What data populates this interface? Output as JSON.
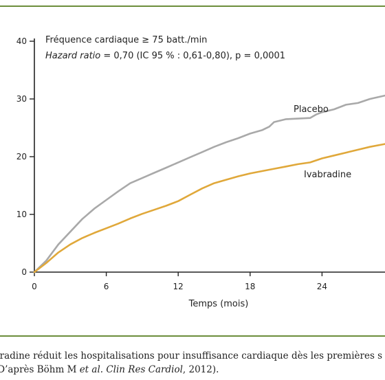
{
  "chart_data": {
    "type": "line",
    "annotation_line1": "Fréquence cardiaque ≥ 75 batt./min",
    "annotation_line2_italic": "Hazard ratio",
    "annotation_line2_rest": " = 0,70 (IC 95 % : 0,61-0,80), p = 0,0001",
    "xlabel": "Temps (mois)",
    "ylabel": "",
    "xlim": [
      0,
      30
    ],
    "ylim": [
      0,
      40
    ],
    "x_ticks": [
      "0",
      "6",
      "12",
      "18",
      "24"
    ],
    "y_ticks": [
      "0",
      "10",
      "20",
      "30",
      "40"
    ],
    "grid": false,
    "series": [
      {
        "name": "Placebo",
        "color": "#a9a9a9",
        "x": [
          0,
          1,
          2,
          3,
          4,
          5,
          6,
          7,
          8,
          9,
          10,
          11,
          12,
          13,
          14,
          15,
          16,
          17,
          18,
          19,
          19.6,
          20,
          21,
          22,
          23,
          23.5,
          24,
          25,
          26,
          27,
          28,
          29.5
        ],
        "y": [
          0,
          2,
          4.8,
          7.0,
          9.2,
          11.0,
          12.5,
          14.0,
          15.4,
          16.3,
          17.2,
          18.1,
          19.0,
          19.9,
          20.8,
          21.7,
          22.5,
          23.2,
          24.0,
          24.6,
          25.2,
          26.0,
          26.5,
          26.6,
          26.7,
          27.3,
          27.7,
          28.2,
          29.0,
          29.3,
          30.0,
          30.7
        ]
      },
      {
        "name": "Ivabradine",
        "color": "#e0a83a",
        "x": [
          0,
          1,
          2,
          3,
          4,
          5,
          6,
          7,
          8,
          9,
          10,
          11,
          12,
          13,
          14,
          15,
          16,
          17,
          18,
          19,
          20,
          21,
          22,
          23,
          24,
          25,
          26,
          27,
          28,
          29,
          29.5
        ],
        "y": [
          0,
          1.6,
          3.4,
          4.8,
          5.9,
          6.8,
          7.6,
          8.4,
          9.3,
          10.1,
          10.8,
          11.5,
          12.3,
          13.4,
          14.5,
          15.4,
          16.0,
          16.6,
          17.1,
          17.5,
          17.9,
          18.3,
          18.7,
          19.0,
          19.7,
          20.2,
          20.7,
          21.2,
          21.7,
          22.1,
          22.3
        ]
      }
    ]
  },
  "caption": {
    "line1": "bradine réduit les hospitalisations pour insuffisance cardiaque dès les premières s",
    "line2_a": "(D’après Böhm M ",
    "line2_italic": "et al. Clin Res Cardiol",
    "line2_b": ", 2012)."
  },
  "colors": {
    "rule": "#6b8d3a",
    "placebo": "#a9a9a9",
    "ivabradine": "#e0a83a"
  }
}
